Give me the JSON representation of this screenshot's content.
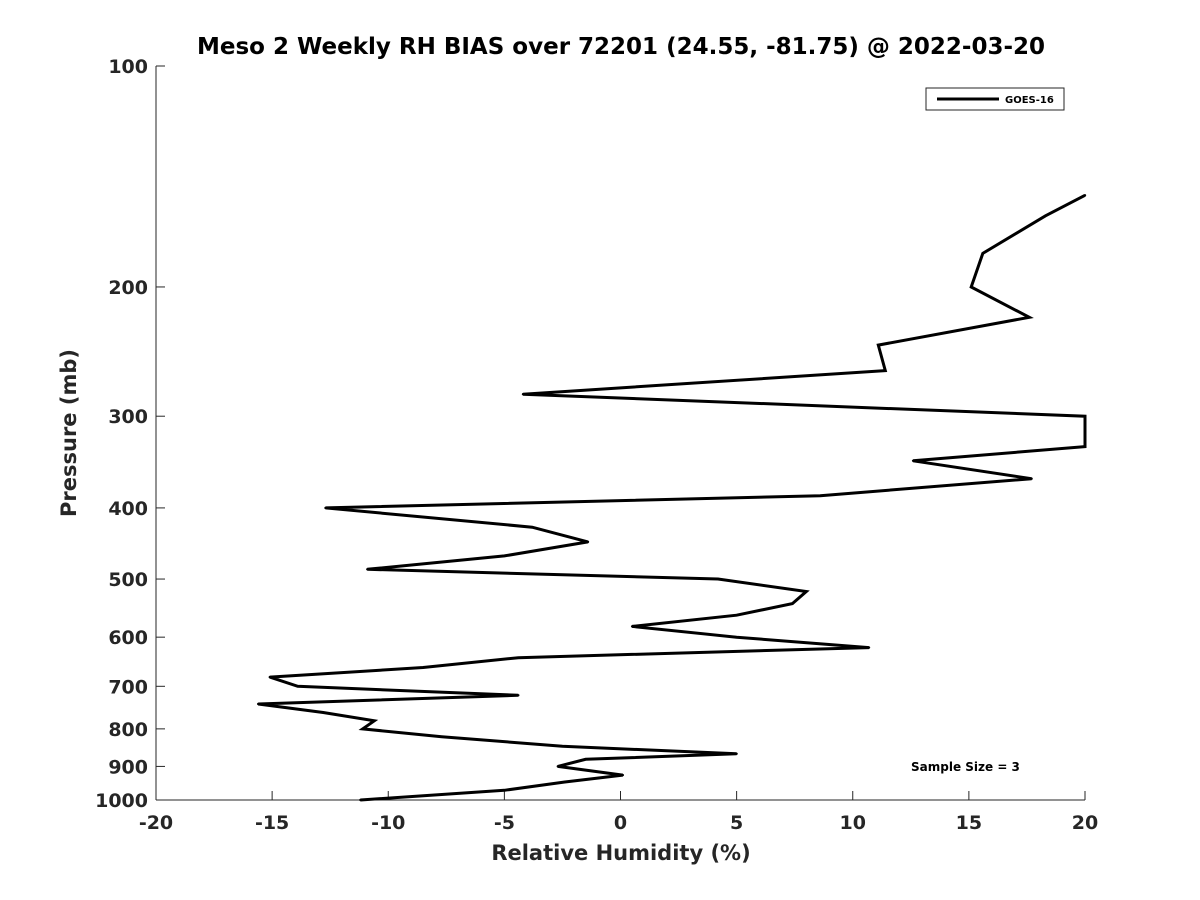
{
  "chart_data": {
    "type": "line",
    "title": "Meso 2 Weekly RH BIAS over 72201 (24.55, -81.75) @ 2022-03-20",
    "xlabel": "Relative Humidity (%)",
    "ylabel": "Pressure (mb)",
    "xlim": [
      -20,
      20
    ],
    "ylim": [
      100,
      1000
    ],
    "yscale": "log",
    "y_reversed": true,
    "grid": false,
    "xticks": [
      -20,
      -15,
      -10,
      -5,
      0,
      5,
      10,
      15,
      20
    ],
    "xtick_labels": [
      "-20",
      "-15",
      "-10",
      "-5",
      "0",
      "5",
      "10",
      "15",
      "20"
    ],
    "yticks": [
      100,
      200,
      300,
      400,
      500,
      600,
      700,
      800,
      900,
      1000
    ],
    "ytick_labels": [
      "100",
      "200",
      "300",
      "400",
      "500",
      "600",
      "700",
      "800",
      "900",
      "1000"
    ],
    "legend_position": "top-right",
    "annotation": "Sample Size = 3",
    "line_color": "#000000",
    "series": [
      {
        "name": "GOES-16",
        "points": [
          {
            "x": 20.0,
            "y": 150
          },
          {
            "x": 18.3,
            "y": 160
          },
          {
            "x": 15.6,
            "y": 180
          },
          {
            "x": 15.1,
            "y": 200
          },
          {
            "x": 17.6,
            "y": 220
          },
          {
            "x": 11.1,
            "y": 240
          },
          {
            "x": 11.4,
            "y": 260
          },
          {
            "x": -4.2,
            "y": 280
          },
          {
            "x": 20.0,
            "y": 300
          },
          {
            "x": 20.0,
            "y": 330
          },
          {
            "x": 12.6,
            "y": 345
          },
          {
            "x": 17.7,
            "y": 365
          },
          {
            "x": 8.6,
            "y": 385
          },
          {
            "x": -12.7,
            "y": 400
          },
          {
            "x": -3.8,
            "y": 425
          },
          {
            "x": -1.4,
            "y": 445
          },
          {
            "x": -5.0,
            "y": 465
          },
          {
            "x": -10.9,
            "y": 485
          },
          {
            "x": 4.2,
            "y": 500
          },
          {
            "x": 8.0,
            "y": 520
          },
          {
            "x": 7.4,
            "y": 540
          },
          {
            "x": 5.0,
            "y": 560
          },
          {
            "x": 0.5,
            "y": 580
          },
          {
            "x": 5.0,
            "y": 600
          },
          {
            "x": 10.7,
            "y": 620
          },
          {
            "x": -4.4,
            "y": 640
          },
          {
            "x": -8.5,
            "y": 660
          },
          {
            "x": -15.1,
            "y": 680
          },
          {
            "x": -13.9,
            "y": 700
          },
          {
            "x": -4.4,
            "y": 720
          },
          {
            "x": -15.6,
            "y": 740
          },
          {
            "x": -12.8,
            "y": 760
          },
          {
            "x": -10.6,
            "y": 780
          },
          {
            "x": -11.1,
            "y": 800
          },
          {
            "x": -7.7,
            "y": 820
          },
          {
            "x": -2.5,
            "y": 845
          },
          {
            "x": 5.0,
            "y": 865
          },
          {
            "x": -1.5,
            "y": 880
          },
          {
            "x": -2.7,
            "y": 900
          },
          {
            "x": 0.1,
            "y": 925
          },
          {
            "x": -2.4,
            "y": 945
          },
          {
            "x": -5.0,
            "y": 970
          },
          {
            "x": -11.2,
            "y": 1000
          }
        ]
      }
    ]
  }
}
